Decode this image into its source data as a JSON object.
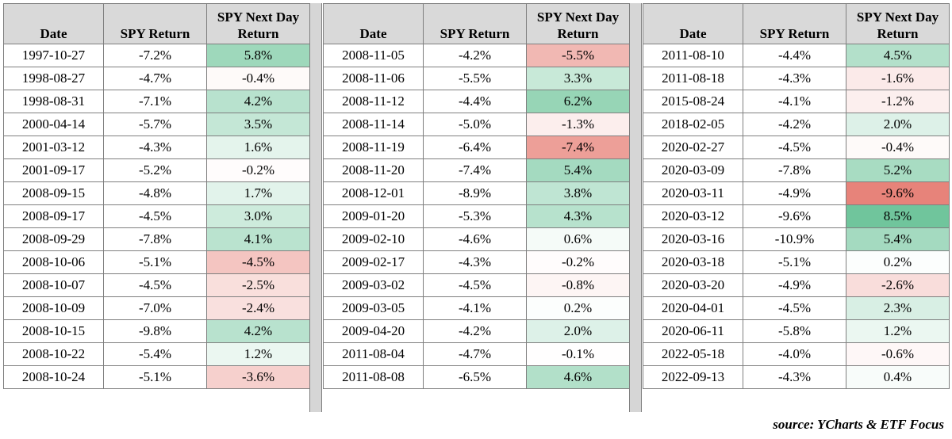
{
  "headers": {
    "date": "Date",
    "ret": "SPY Return",
    "next": "SPY Next Day Return"
  },
  "colors": {
    "header_bg": "#d9d9d9",
    "positive": "#57bb8a",
    "negative": "#e67c73",
    "border": "#7f7f7f"
  },
  "panels": [
    {
      "rows": [
        {
          "date": "1997-10-27",
          "ret": "-7.2%",
          "next": "5.8%",
          "v": 5.8
        },
        {
          "date": "1998-08-27",
          "ret": "-4.7%",
          "next": "-0.4%",
          "v": -0.4
        },
        {
          "date": "1998-08-31",
          "ret": "-7.1%",
          "next": "4.2%",
          "v": 4.2
        },
        {
          "date": "2000-04-14",
          "ret": "-5.7%",
          "next": "3.5%",
          "v": 3.5
        },
        {
          "date": "2001-03-12",
          "ret": "-4.3%",
          "next": "1.6%",
          "v": 1.6
        },
        {
          "date": "2001-09-17",
          "ret": "-5.2%",
          "next": "-0.2%",
          "v": -0.2
        },
        {
          "date": "2008-09-15",
          "ret": "-4.8%",
          "next": "1.7%",
          "v": 1.7
        },
        {
          "date": "2008-09-17",
          "ret": "-4.5%",
          "next": "3.0%",
          "v": 3.0
        },
        {
          "date": "2008-09-29",
          "ret": "-7.8%",
          "next": "4.1%",
          "v": 4.1
        },
        {
          "date": "2008-10-06",
          "ret": "-5.1%",
          "next": "-4.5%",
          "v": -4.5
        },
        {
          "date": "2008-10-07",
          "ret": "-4.5%",
          "next": "-2.5%",
          "v": -2.5
        },
        {
          "date": "2008-10-09",
          "ret": "-7.0%",
          "next": "-2.4%",
          "v": -2.4
        },
        {
          "date": "2008-10-15",
          "ret": "-9.8%",
          "next": "4.2%",
          "v": 4.2
        },
        {
          "date": "2008-10-22",
          "ret": "-5.4%",
          "next": "1.2%",
          "v": 1.2
        },
        {
          "date": "2008-10-24",
          "ret": "-5.1%",
          "next": "-3.6%",
          "v": -3.6
        }
      ]
    },
    {
      "rows": [
        {
          "date": "2008-11-05",
          "ret": "-4.2%",
          "next": "-5.5%",
          "v": -5.5
        },
        {
          "date": "2008-11-06",
          "ret": "-5.5%",
          "next": "3.3%",
          "v": 3.3
        },
        {
          "date": "2008-11-12",
          "ret": "-4.4%",
          "next": "6.2%",
          "v": 6.2
        },
        {
          "date": "2008-11-14",
          "ret": "-5.0%",
          "next": "-1.3%",
          "v": -1.3
        },
        {
          "date": "2008-11-19",
          "ret": "-6.4%",
          "next": "-7.4%",
          "v": -7.4
        },
        {
          "date": "2008-11-20",
          "ret": "-7.4%",
          "next": "5.4%",
          "v": 5.4
        },
        {
          "date": "2008-12-01",
          "ret": "-8.9%",
          "next": "3.8%",
          "v": 3.8
        },
        {
          "date": "2009-01-20",
          "ret": "-5.3%",
          "next": "4.3%",
          "v": 4.3
        },
        {
          "date": "2009-02-10",
          "ret": "-4.6%",
          "next": "0.6%",
          "v": 0.6
        },
        {
          "date": "2009-02-17",
          "ret": "-4.3%",
          "next": "-0.2%",
          "v": -0.2
        },
        {
          "date": "2009-03-02",
          "ret": "-4.5%",
          "next": "-0.8%",
          "v": -0.8
        },
        {
          "date": "2009-03-05",
          "ret": "-4.1%",
          "next": "0.2%",
          "v": 0.2
        },
        {
          "date": "2009-04-20",
          "ret": "-4.2%",
          "next": "2.0%",
          "v": 2.0
        },
        {
          "date": "2011-08-04",
          "ret": "-4.7%",
          "next": "-0.1%",
          "v": -0.1
        },
        {
          "date": "2011-08-08",
          "ret": "-6.5%",
          "next": "4.6%",
          "v": 4.6
        }
      ]
    },
    {
      "rows": [
        {
          "date": "2011-08-10",
          "ret": "-4.4%",
          "next": "4.5%",
          "v": 4.5
        },
        {
          "date": "2011-08-18",
          "ret": "-4.3%",
          "next": "-1.6%",
          "v": -1.6
        },
        {
          "date": "2015-08-24",
          "ret": "-4.1%",
          "next": "-1.2%",
          "v": -1.2
        },
        {
          "date": "2018-02-05",
          "ret": "-4.2%",
          "next": "2.0%",
          "v": 2.0
        },
        {
          "date": "2020-02-27",
          "ret": "-4.5%",
          "next": "-0.4%",
          "v": -0.4
        },
        {
          "date": "2020-03-09",
          "ret": "-7.8%",
          "next": "5.2%",
          "v": 5.2
        },
        {
          "date": "2020-03-11",
          "ret": "-4.9%",
          "next": "-9.6%",
          "v": -9.6
        },
        {
          "date": "2020-03-12",
          "ret": "-9.6%",
          "next": "8.5%",
          "v": 8.5
        },
        {
          "date": "2020-03-16",
          "ret": "-10.9%",
          "next": "5.4%",
          "v": 5.4
        },
        {
          "date": "2020-03-18",
          "ret": "-5.1%",
          "next": "0.2%",
          "v": 0.2
        },
        {
          "date": "2020-03-20",
          "ret": "-4.9%",
          "next": "-2.6%",
          "v": -2.6
        },
        {
          "date": "2020-04-01",
          "ret": "-4.5%",
          "next": "2.3%",
          "v": 2.3
        },
        {
          "date": "2020-06-11",
          "ret": "-5.8%",
          "next": "1.2%",
          "v": 1.2
        },
        {
          "date": "2022-05-18",
          "ret": "-4.0%",
          "next": "-0.6%",
          "v": -0.6
        },
        {
          "date": "2022-09-13",
          "ret": "-4.3%",
          "next": "0.4%",
          "v": 0.4
        }
      ]
    }
  ],
  "source": "source: YCharts & ETF Focus"
}
